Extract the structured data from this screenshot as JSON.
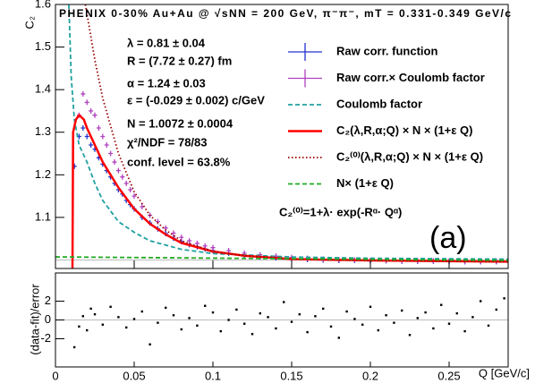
{
  "chart_data": [
    {
      "type": "line",
      "title": "PHENIX 0-30% Au+Au @ √sNN = 200 GeV, π⁻π⁻,  mT = 0.331-0.349 GeV/c",
      "y_label": "C₂",
      "panel_label": "(a)",
      "annotations": [
        "λ = 0.81 ± 0.04",
        "R = (7.72 ± 0.27) fm",
        "α = 1.24 ± 0.03",
        "ε = (-0.029 ± 0.002) c/GeV",
        "N = 1.0072 ± 0.0004",
        "χ²/NDF = 78/83",
        "conf. level = 63.8%",
        "C₂⁽⁰⁾=1+λ· exp(-Rᵅ· Qᵅ)"
      ],
      "xlim": [
        0,
        0.2875
      ],
      "ylim": [
        0.98,
        1.6
      ],
      "yticks": [
        1.1,
        1.2,
        1.3,
        1.4,
        1.5,
        1.6
      ],
      "series": [
        {
          "name": "Raw corr. function",
          "color": "#2233cc",
          "kind": "points",
          "x": [
            0.012,
            0.015,
            0.0175,
            0.02,
            0.0225,
            0.025,
            0.0275,
            0.03,
            0.0325,
            0.035,
            0.0375,
            0.04,
            0.0425,
            0.045,
            0.0475,
            0.05,
            0.055,
            0.06,
            0.065,
            0.07,
            0.075,
            0.08,
            0.085,
            0.09,
            0.095,
            0.1,
            0.11,
            0.12,
            0.13,
            0.14,
            0.15,
            0.16,
            0.17,
            0.18,
            0.19,
            0.2,
            0.21,
            0.22,
            0.23,
            0.24,
            0.25,
            0.26,
            0.27,
            0.28
          ],
          "values": [
            1.22,
            1.29,
            1.31,
            1.29,
            1.27,
            1.26,
            1.24,
            1.225,
            1.21,
            1.195,
            1.18,
            1.165,
            1.155,
            1.14,
            1.13,
            1.12,
            1.1,
            1.087,
            1.073,
            1.062,
            1.051,
            1.043,
            1.036,
            1.031,
            1.026,
            1.022,
            1.016,
            1.011,
            1.007,
            1.005,
            1.003,
            1.001,
            1.0,
            0.999,
            0.999,
            0.998,
            0.998,
            0.997,
            0.997,
            0.997,
            0.997,
            0.996,
            0.996,
            0.996
          ]
        },
        {
          "name": "Raw corr.× Coulomb factor",
          "color": "#b040c0",
          "kind": "points",
          "x": [
            0.015,
            0.0175,
            0.02,
            0.0225,
            0.025,
            0.0275,
            0.03,
            0.0325,
            0.035,
            0.0375,
            0.04,
            0.0425,
            0.045,
            0.0475,
            0.05,
            0.055,
            0.06,
            0.065,
            0.07,
            0.075,
            0.08,
            0.085,
            0.09,
            0.095,
            0.1,
            0.11,
            0.12,
            0.13,
            0.14,
            0.15,
            0.16,
            0.17,
            0.18,
            0.19,
            0.2,
            0.21,
            0.22,
            0.23,
            0.24,
            0.25,
            0.26,
            0.27,
            0.28
          ],
          "values": [
            1.34,
            1.39,
            1.37,
            1.35,
            1.34,
            1.31,
            1.29,
            1.27,
            1.25,
            1.23,
            1.21,
            1.195,
            1.18,
            1.165,
            1.15,
            1.125,
            1.105,
            1.09,
            1.075,
            1.063,
            1.053,
            1.045,
            1.039,
            1.033,
            1.029,
            1.022,
            1.016,
            1.012,
            1.009,
            1.006,
            1.004,
            1.002,
            1.001,
            1.0,
            0.999,
            0.999,
            0.998,
            0.998,
            0.998,
            0.997,
            0.997,
            0.997,
            0.997
          ]
        },
        {
          "name": "Coulomb factor",
          "color": "#20a0a0",
          "kind": "dashed",
          "x": [
            0.0085,
            0.01,
            0.012,
            0.015,
            0.02,
            0.025,
            0.03,
            0.04,
            0.05,
            0.06,
            0.08,
            0.1,
            0.15,
            0.2,
            0.2875
          ],
          "values": [
            1.6,
            1.43,
            1.33,
            1.27,
            1.23,
            1.18,
            1.14,
            1.09,
            1.065,
            1.045,
            1.025,
            1.015,
            1.007,
            1.004,
            1.002
          ]
        },
        {
          "name": "C₂(λ,R,α;Q) × N × (1+ε Q)",
          "color": "#ff0000",
          "kind": "line",
          "x": [
            0.0108,
            0.0112,
            0.013,
            0.015,
            0.018,
            0.02,
            0.025,
            0.03,
            0.04,
            0.05,
            0.06,
            0.07,
            0.08,
            0.1,
            0.12,
            0.15,
            0.2,
            0.2875
          ],
          "values": [
            0.98,
            1.3,
            1.33,
            1.34,
            1.33,
            1.31,
            1.27,
            1.23,
            1.17,
            1.12,
            1.085,
            1.06,
            1.04,
            1.02,
            1.01,
            1.002,
            0.999,
            0.996
          ]
        },
        {
          "name": "C₂⁽⁰⁾(λ,R,α;Q) × N × (1+ε Q)",
          "color": "#990000",
          "kind": "dotted",
          "x": [
            0.019,
            0.025,
            0.03,
            0.04,
            0.05,
            0.06,
            0.07,
            0.08,
            0.1,
            0.12,
            0.15,
            0.2,
            0.2875
          ],
          "values": [
            1.6,
            1.47,
            1.38,
            1.25,
            1.16,
            1.105,
            1.07,
            1.045,
            1.02,
            1.01,
            1.002,
            0.999,
            0.996
          ]
        },
        {
          "name": "N× (1+ε Q)",
          "color": "#22aa22",
          "kind": "dashed",
          "x": [
            0,
            0.2875
          ],
          "values": [
            1.0072,
            0.999
          ]
        }
      ]
    },
    {
      "type": "scatter",
      "x_label": "Q [GeV/c]",
      "y_label": "(data-fit)/error",
      "xlim": [
        0,
        0.2875
      ],
      "ylim": [
        -5,
        5
      ],
      "xticks": [
        0,
        0.05,
        0.1,
        0.15,
        0.2,
        0.25
      ],
      "yticks": [
        -2,
        0,
        2
      ],
      "color": "#000000",
      "x": [
        0.012,
        0.015,
        0.0175,
        0.02,
        0.0225,
        0.025,
        0.03,
        0.035,
        0.04,
        0.045,
        0.05,
        0.055,
        0.06,
        0.065,
        0.07,
        0.075,
        0.08,
        0.085,
        0.09,
        0.095,
        0.1,
        0.105,
        0.11,
        0.115,
        0.12,
        0.125,
        0.13,
        0.135,
        0.14,
        0.145,
        0.15,
        0.155,
        0.16,
        0.165,
        0.17,
        0.175,
        0.18,
        0.185,
        0.19,
        0.195,
        0.2,
        0.205,
        0.21,
        0.215,
        0.22,
        0.225,
        0.23,
        0.235,
        0.24,
        0.245,
        0.25,
        0.255,
        0.26,
        0.265,
        0.27,
        0.275,
        0.28,
        0.285
      ],
      "values": [
        -2.9,
        -0.7,
        0.4,
        -1.1,
        1.2,
        0.6,
        -0.5,
        1.4,
        0.3,
        -0.8,
        0.1,
        0.9,
        -2.6,
        -0.3,
        1.3,
        0.5,
        -1.0,
        0.2,
        -0.6,
        1.5,
        0.8,
        -1.2,
        0.0,
        1.1,
        -0.4,
        -1.5,
        0.7,
        0.3,
        -0.9,
        1.9,
        -0.2,
        0.6,
        -1.3,
        0.4,
        1.2,
        -0.7,
        -1.9,
        0.9,
        0.1,
        -0.5,
        1.4,
        -1.1,
        0.5,
        -0.3,
        1.0,
        -1.6,
        0.2,
        0.8,
        -0.9,
        1.6,
        -0.4,
        0.7,
        -1.2,
        0.3,
        2.0,
        -0.6,
        1.1,
        2.3
      ]
    }
  ]
}
